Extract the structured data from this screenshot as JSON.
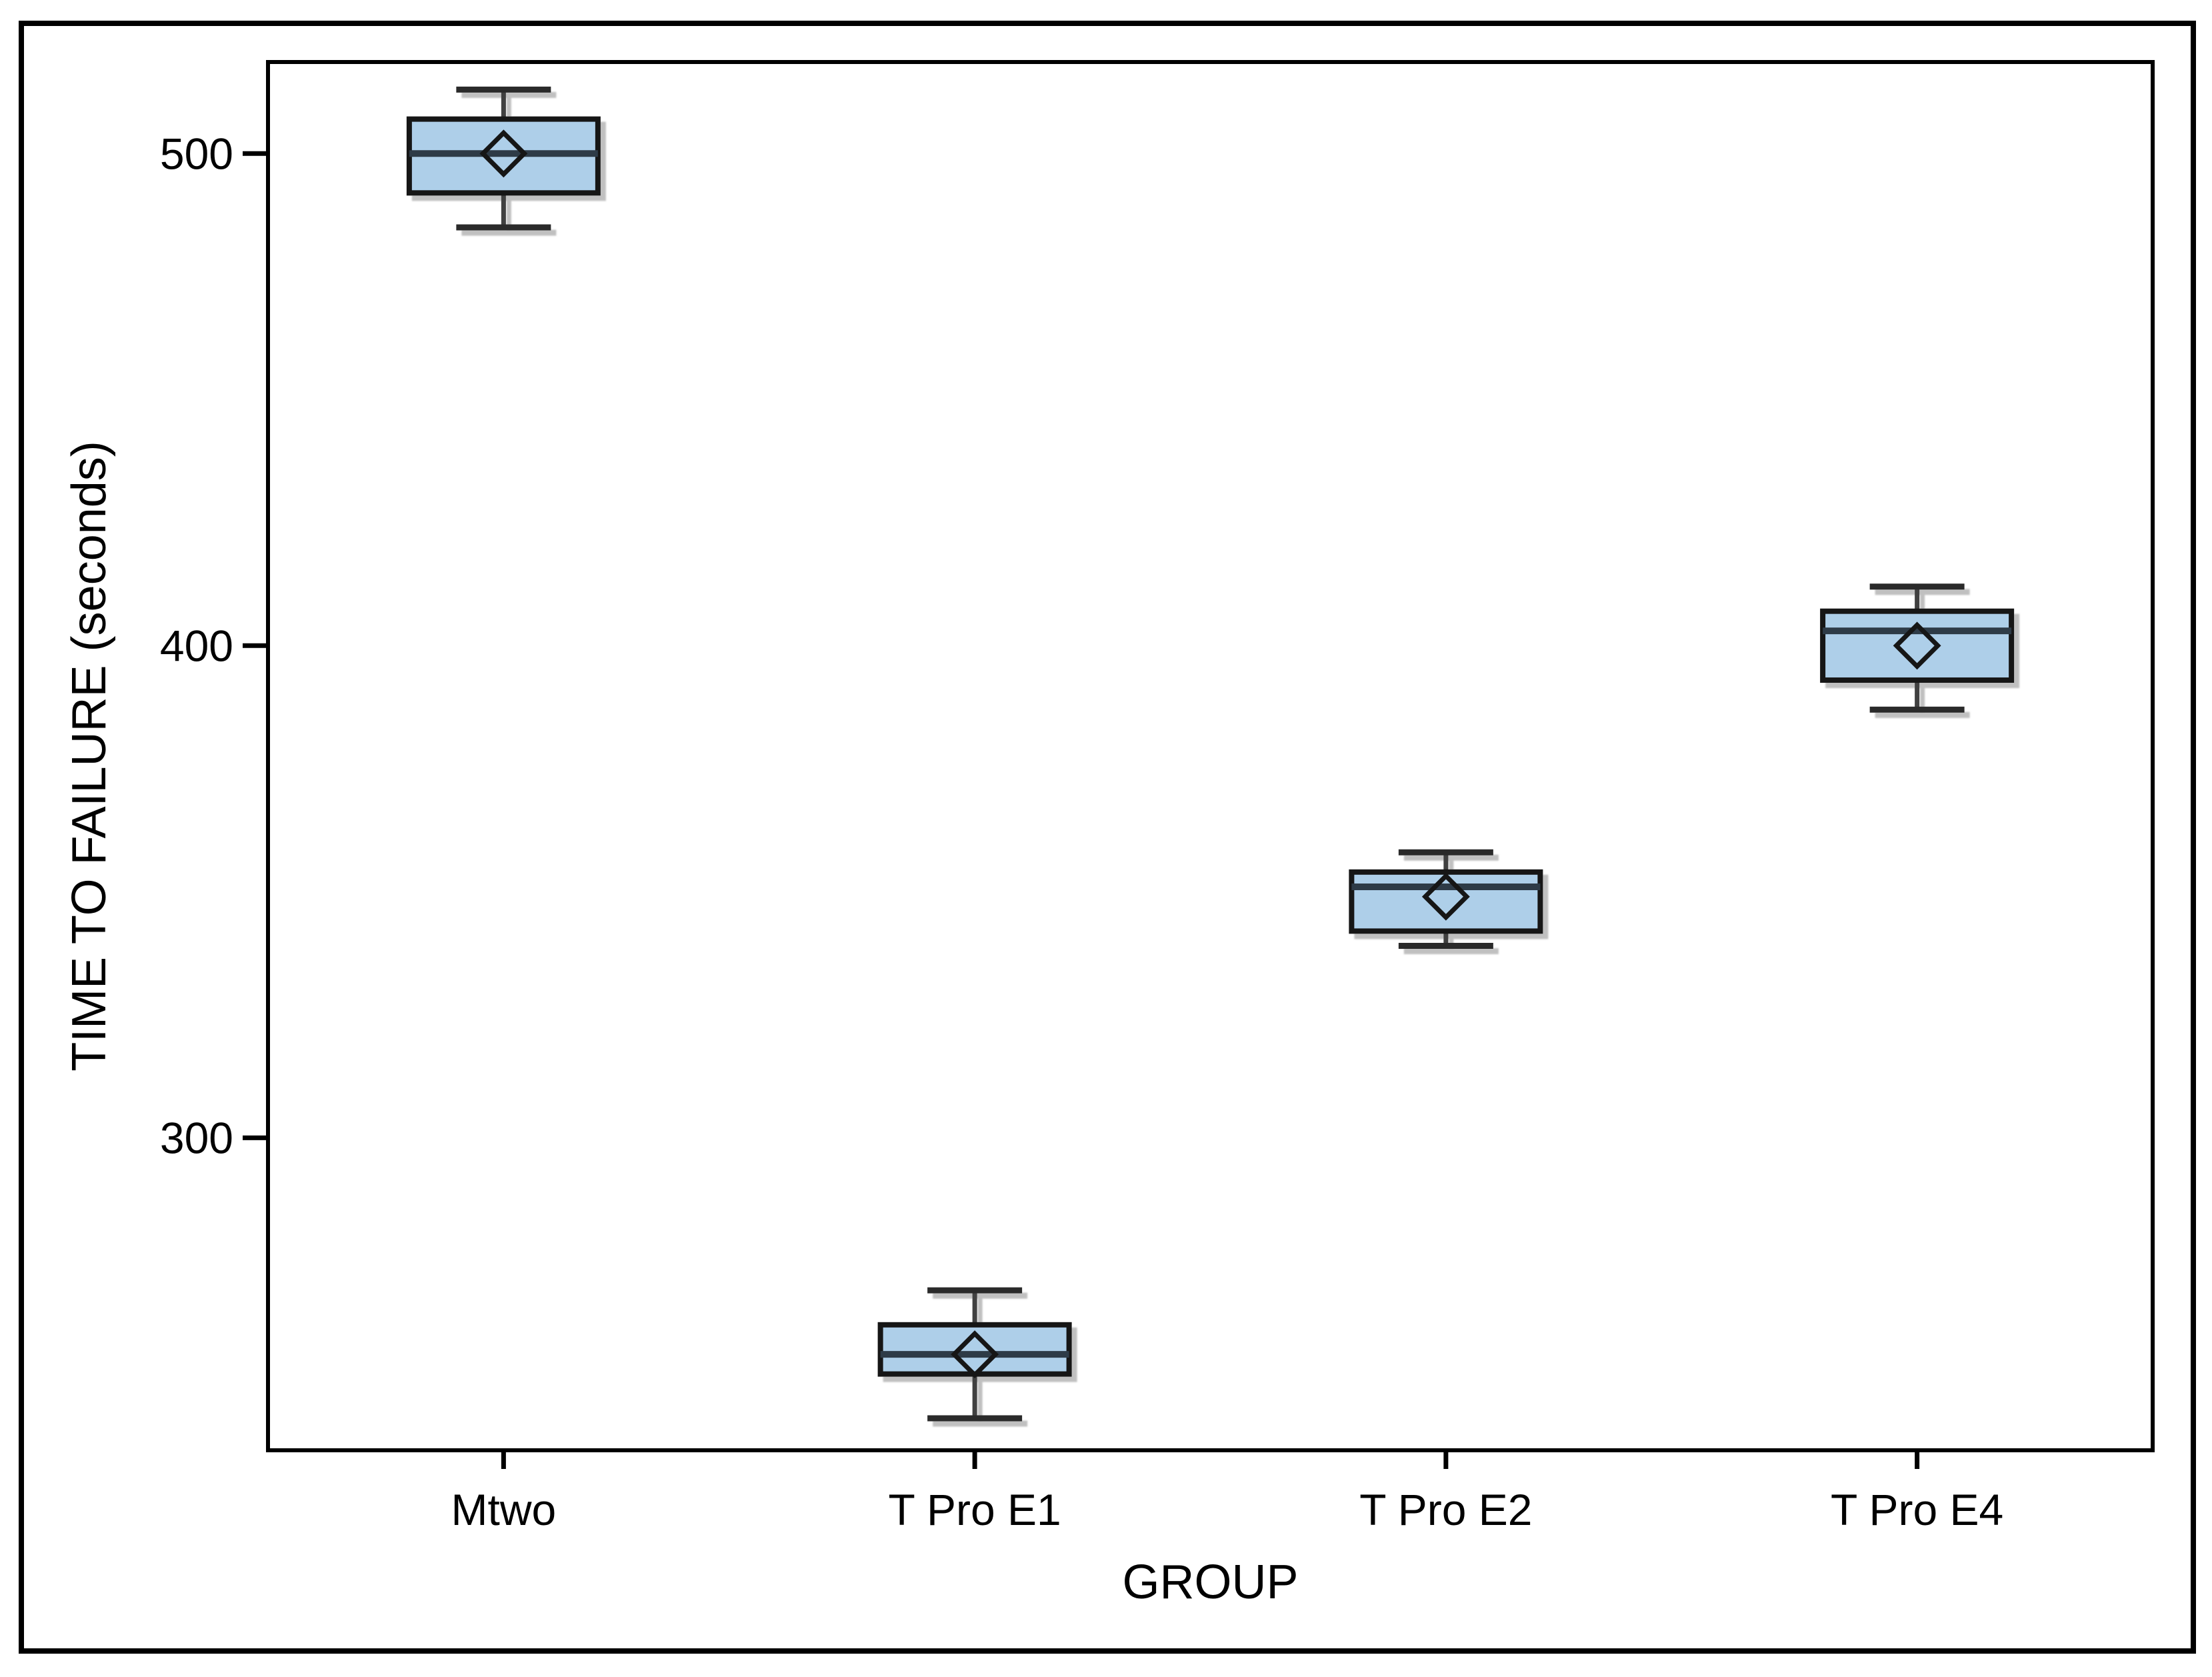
{
  "figure": {
    "background": "#ffffff",
    "border_color": "#000000"
  },
  "chart_data": {
    "type": "boxplot",
    "title": "",
    "xlabel": "GROUP",
    "ylabel": "TIME TO FAILURE (seconds)",
    "categories": [
      "Mtwo",
      "T Pro E1",
      "T Pro E2",
      "T Pro E4"
    ],
    "series": [
      {
        "group": "Mtwo",
        "whisker_low": 485,
        "q1": 492,
        "median": 500,
        "mean": 500,
        "q3": 507,
        "whisker_high": 513
      },
      {
        "group": "T Pro E1",
        "whisker_low": 243,
        "q1": 252,
        "median": 256,
        "mean": 256,
        "q3": 262,
        "whisker_high": 269
      },
      {
        "group": "T Pro E2",
        "whisker_low": 339,
        "q1": 342,
        "median": 351,
        "mean": 349,
        "q3": 354,
        "whisker_high": 358
      },
      {
        "group": "T Pro E4",
        "whisker_low": 387,
        "q1": 393,
        "median": 403,
        "mean": 400,
        "q3": 407,
        "whisker_high": 412
      }
    ],
    "yticks": [
      300,
      400,
      500
    ],
    "ylim": [
      236.5,
      518.6
    ],
    "grid": false,
    "legend": false,
    "mean_marker": "open-diamond",
    "colors": {
      "box_fill": "#aecfe9",
      "box_stroke": "#141414",
      "median_line": "#2f3b47",
      "whisker_line": "#404040",
      "cap_line": "#2b2b2b",
      "mean_marker": "#141414",
      "axis": "#000000",
      "text": "#000000",
      "shadow": "#8c8c8c"
    }
  }
}
